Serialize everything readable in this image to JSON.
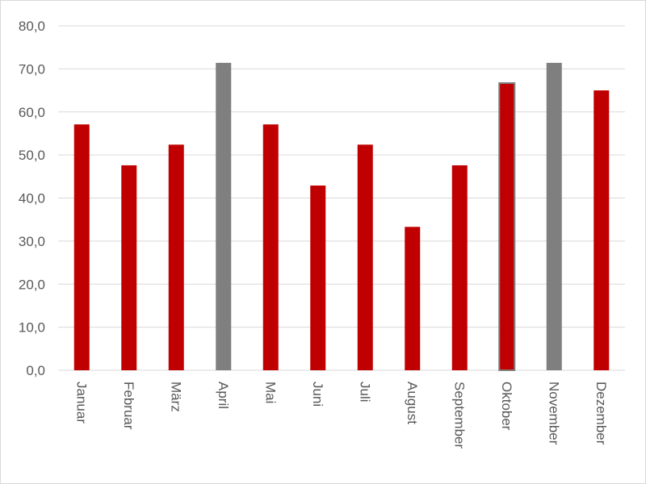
{
  "chart_data": {
    "type": "bar",
    "categories": [
      "Januar",
      "Februar",
      "März",
      "April",
      "Mai",
      "Juni",
      "Juli",
      "August",
      "September",
      "Oktober",
      "November",
      "Dezember"
    ],
    "values": [
      57.1,
      47.6,
      52.4,
      71.4,
      57.1,
      42.9,
      52.4,
      33.3,
      47.6,
      66.7,
      71.4,
      65.0
    ],
    "bar_colors": [
      "#c00000",
      "#c00000",
      "#c00000",
      "#7f7f7f",
      "#c00000",
      "#c00000",
      "#c00000",
      "#c00000",
      "#c00000",
      "#c00000",
      "#7f7f7f",
      "#c00000"
    ],
    "bar_outline_colors": [
      "",
      "",
      "",
      "",
      "",
      "",
      "",
      "",
      "",
      "#7f7f7f",
      "",
      ""
    ],
    "yticks": [
      "0,0",
      "10,0",
      "20,0",
      "30,0",
      "40,0",
      "50,0",
      "60,0",
      "70,0",
      "80,0"
    ],
    "ylim": [
      0,
      80
    ],
    "grid": true,
    "title": "",
    "xlabel": "",
    "ylabel": ""
  },
  "colors": {
    "primary_bar": "#c00000",
    "highlight_bar": "#7f7f7f",
    "grid": "#d9d9d9",
    "text": "#595959"
  }
}
